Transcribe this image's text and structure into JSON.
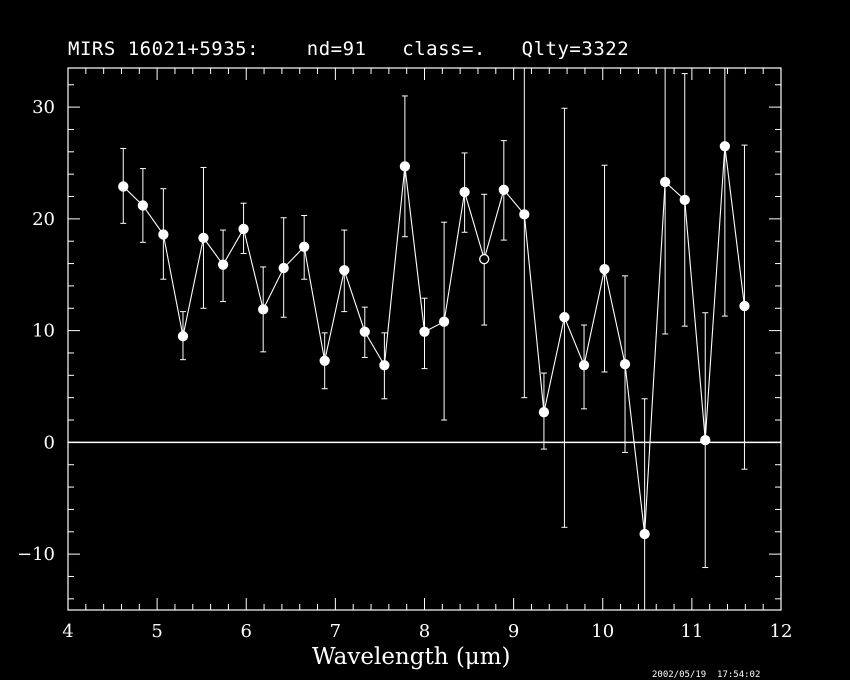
{
  "chart_data": {
    "type": "scatter",
    "title": "MIRS 16021+5935:    nd=91   class=.   Qlty=3322",
    "xlabel": "Wavelength (μm)",
    "ylabel": "",
    "timestamp": "2002/05/19  17:54:02",
    "xlim": [
      4,
      12
    ],
    "ylim": [
      -15,
      33.5
    ],
    "x_ticks": [
      4,
      5,
      6,
      7,
      8,
      9,
      10,
      11,
      12
    ],
    "y_ticks": [
      -10,
      0,
      10,
      20,
      30
    ],
    "zero_line": 0,
    "colors": {
      "background": "#000000",
      "foreground": "#ffffff"
    },
    "series": [
      {
        "x": [
          4.62,
          4.84,
          5.07,
          5.29,
          5.52,
          5.74,
          5.97,
          6.19,
          6.42,
          6.65,
          6.88,
          7.1,
          7.33,
          7.55,
          7.78,
          8.0,
          8.22,
          8.45,
          8.67,
          8.89,
          9.12,
          9.34,
          9.57,
          9.79,
          10.02,
          10.25,
          10.47,
          10.7,
          10.92,
          11.15,
          11.37,
          11.59
        ],
        "y": [
          22.9,
          21.2,
          18.6,
          9.5,
          18.3,
          15.9,
          19.1,
          11.9,
          15.6,
          17.5,
          7.3,
          15.4,
          9.9,
          6.9,
          24.7,
          9.9,
          10.8,
          22.4,
          16.4,
          22.6,
          20.4,
          2.7,
          11.2,
          6.9,
          15.5,
          7.0,
          -8.2,
          23.3,
          21.7,
          0.2,
          26.5,
          12.2
        ],
        "yerr_low": [
          19.6,
          17.9,
          14.6,
          7.4,
          12.0,
          12.6,
          16.9,
          8.1,
          11.2,
          14.6,
          4.8,
          11.7,
          7.6,
          3.9,
          18.4,
          6.6,
          2.0,
          18.8,
          10.5,
          18.1,
          4.0,
          -0.6,
          -7.6,
          3.0,
          6.3,
          -0.9,
          -15.0,
          9.7,
          10.4,
          -11.2,
          11.3,
          -2.4
        ],
        "yerr_high": [
          26.3,
          24.5,
          22.7,
          11.7,
          24.6,
          19.0,
          21.4,
          15.7,
          20.1,
          20.3,
          9.8,
          19.0,
          12.1,
          9.8,
          31.0,
          12.9,
          19.7,
          25.9,
          22.2,
          27.0,
          33.5,
          6.2,
          29.9,
          10.5,
          24.8,
          14.9,
          3.9,
          33.5,
          33.0,
          11.6,
          33.5,
          26.6
        ],
        "open_markers": [
          18
        ]
      }
    ]
  }
}
